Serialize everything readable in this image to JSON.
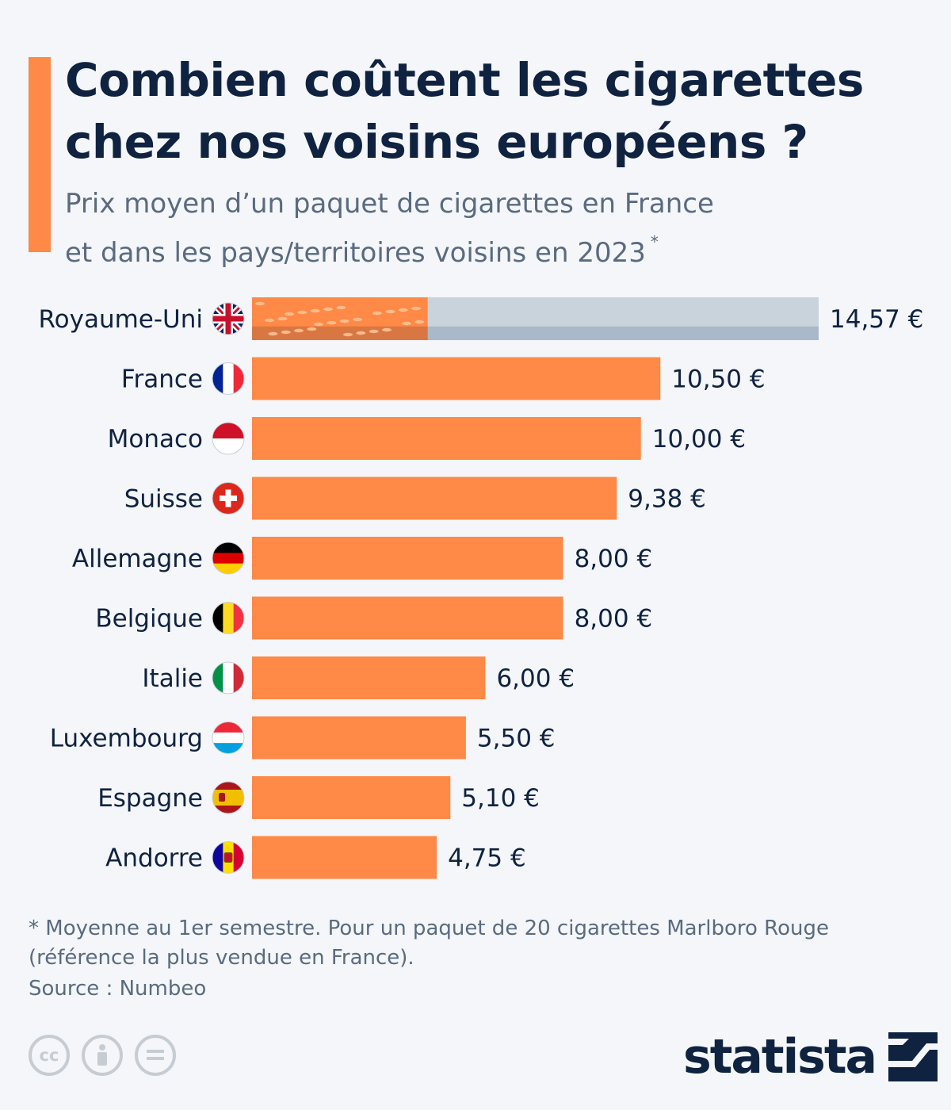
{
  "header": {
    "title": "Combien coûtent les cigarettes\nchez nos voisins européens ?",
    "subtitle": "Prix moyen d’un paquet de cigarettes en France\net dans les pays/territoires voisins en 2023",
    "subtitle_marker": "*"
  },
  "chart_data": {
    "type": "bar",
    "orientation": "horizontal",
    "categories": [
      "Royaume-Uni",
      "France",
      "Monaco",
      "Suisse",
      "Allemagne",
      "Belgique",
      "Italie",
      "Luxembourg",
      "Espagne",
      "Andorre"
    ],
    "values": [
      14.57,
      10.5,
      10.0,
      9.38,
      8.0,
      8.0,
      6.0,
      5.5,
      5.1,
      4.75
    ],
    "value_labels": [
      "14,57 €",
      "10,50 €",
      "10,00 €",
      "9,38 €",
      "8,00 €",
      "8,00 €",
      "6,00 €",
      "5,50 €",
      "5,10 €",
      "4,75 €"
    ],
    "flags": [
      "flag-uk-icon",
      "flag-france-icon",
      "flag-monaco-icon",
      "flag-switzerland-icon",
      "flag-germany-icon",
      "flag-belgium-icon",
      "flag-italy-icon",
      "flag-luxembourg-icon",
      "flag-spain-icon",
      "flag-andorra-icon"
    ],
    "highlight": "Royaume-Uni",
    "colors": {
      "bar": "#ff8946",
      "highlight_bar": "#c8d3dc",
      "highlight_bar_shadow": "#a9b9c9",
      "text": "#0f2240"
    },
    "xlim": [
      0,
      14.57
    ],
    "grid": false,
    "legend": "none"
  },
  "footer": {
    "footnote": "* Moyenne au 1er semestre. Pour un paquet de 20 cigarettes Marlboro Rouge\n   (référence la plus vendue en France).",
    "source": "Source : Numbeo",
    "license_icons": [
      "cc-icon",
      "attribution-icon",
      "no-derivatives-icon"
    ],
    "logo": "statista"
  }
}
